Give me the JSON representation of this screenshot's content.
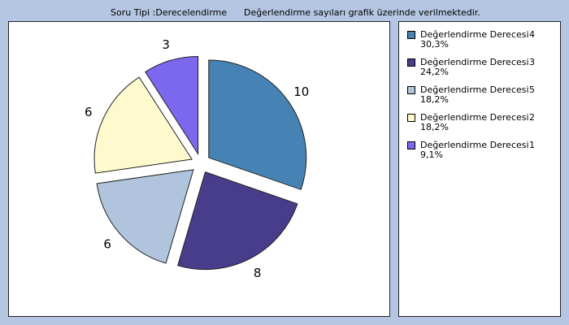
{
  "header": {
    "question_type": "Soru Tipi :Derecelendirme",
    "note": "Değerlendirme sayıları grafik üzerinde verilmektedir."
  },
  "chart_data": {
    "type": "pie",
    "title": "",
    "slices": [
      {
        "label": "Değerlendirme Derecesi",
        "degree": "4",
        "value": 10,
        "percent": "30,3%",
        "color": "#4682b4"
      },
      {
        "label": "Değerlendirme Derecesi",
        "degree": "3",
        "value": 8,
        "percent": "24,2%",
        "color": "#483d8b"
      },
      {
        "label": "Değerlendirme Derecesi",
        "degree": "5",
        "value": 6,
        "percent": "18,2%",
        "color": "#b0c4de"
      },
      {
        "label": "Değerlendirme Derecesi",
        "degree": "2",
        "value": 6,
        "percent": "18,2%",
        "color": "#fffacd"
      },
      {
        "label": "Değerlendirme Derecesi",
        "degree": "1",
        "value": 3,
        "percent": "9,1%",
        "color": "#7b68ee"
      }
    ],
    "legend_position": "right",
    "exploded": true
  }
}
